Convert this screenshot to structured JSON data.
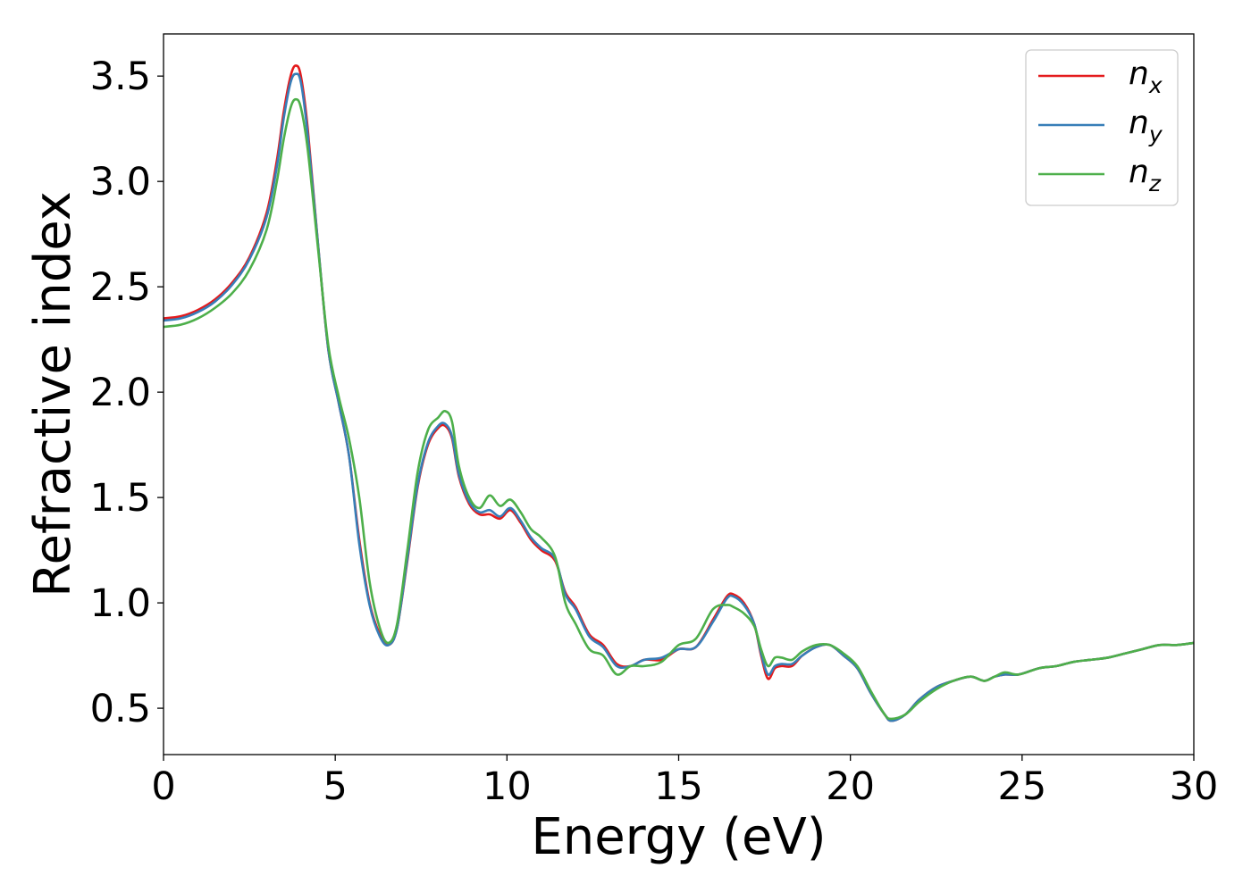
{
  "chart_data": {
    "type": "line",
    "xlabel": "Energy (eV)",
    "ylabel": "Refractive index",
    "xlim": [
      0,
      30
    ],
    "ylim": [
      0.28,
      3.7
    ],
    "xticks": [
      0,
      5,
      10,
      15,
      20,
      25,
      30
    ],
    "xtick_labels": [
      "0",
      "5",
      "10",
      "15",
      "20",
      "25",
      "30"
    ],
    "yticks": [
      0.5,
      1.0,
      1.5,
      2.0,
      2.5,
      3.0,
      3.5
    ],
    "ytick_labels": [
      "0.5",
      "1.0",
      "1.5",
      "2.0",
      "2.5",
      "3.0",
      "3.5"
    ],
    "grid": false,
    "legend_position": "top-right",
    "series": [
      {
        "name": "n_x",
        "base": "n",
        "sub": "x",
        "color": "#e41a1c",
        "points": [
          [
            0,
            2.35
          ],
          [
            0.5,
            2.36
          ],
          [
            1,
            2.39
          ],
          [
            1.5,
            2.44
          ],
          [
            2,
            2.52
          ],
          [
            2.5,
            2.64
          ],
          [
            3,
            2.85
          ],
          [
            3.3,
            3.1
          ],
          [
            3.5,
            3.33
          ],
          [
            3.7,
            3.5
          ],
          [
            3.85,
            3.55
          ],
          [
            4.0,
            3.5
          ],
          [
            4.2,
            3.25
          ],
          [
            4.5,
            2.7
          ],
          [
            4.8,
            2.2
          ],
          [
            5.1,
            1.95
          ],
          [
            5.4,
            1.7
          ],
          [
            5.7,
            1.3
          ],
          [
            6.0,
            1.0
          ],
          [
            6.3,
            0.85
          ],
          [
            6.55,
            0.8
          ],
          [
            6.8,
            0.88
          ],
          [
            7.1,
            1.2
          ],
          [
            7.4,
            1.55
          ],
          [
            7.7,
            1.75
          ],
          [
            8.0,
            1.83
          ],
          [
            8.2,
            1.84
          ],
          [
            8.4,
            1.78
          ],
          [
            8.6,
            1.6
          ],
          [
            8.9,
            1.47
          ],
          [
            9.2,
            1.42
          ],
          [
            9.5,
            1.42
          ],
          [
            9.8,
            1.4
          ],
          [
            10.1,
            1.44
          ],
          [
            10.4,
            1.38
          ],
          [
            10.7,
            1.3
          ],
          [
            11.0,
            1.25
          ],
          [
            11.4,
            1.2
          ],
          [
            11.7,
            1.05
          ],
          [
            12.0,
            0.98
          ],
          [
            12.4,
            0.85
          ],
          [
            12.8,
            0.8
          ],
          [
            13.2,
            0.71
          ],
          [
            13.6,
            0.7
          ],
          [
            14.0,
            0.73
          ],
          [
            14.5,
            0.73
          ],
          [
            15.0,
            0.78
          ],
          [
            15.5,
            0.79
          ],
          [
            16.0,
            0.92
          ],
          [
            16.4,
            1.03
          ],
          [
            16.6,
            1.04
          ],
          [
            16.9,
            1.0
          ],
          [
            17.2,
            0.9
          ],
          [
            17.4,
            0.75
          ],
          [
            17.6,
            0.64
          ],
          [
            17.8,
            0.69
          ],
          [
            18.0,
            0.7
          ],
          [
            18.3,
            0.7
          ],
          [
            18.6,
            0.75
          ],
          [
            19.0,
            0.79
          ],
          [
            19.4,
            0.8
          ],
          [
            19.8,
            0.75
          ],
          [
            20.2,
            0.69
          ],
          [
            20.6,
            0.57
          ],
          [
            21.0,
            0.47
          ],
          [
            21.2,
            0.44
          ],
          [
            21.6,
            0.47
          ],
          [
            22.0,
            0.54
          ],
          [
            22.5,
            0.6
          ],
          [
            23.0,
            0.63
          ],
          [
            23.5,
            0.65
          ],
          [
            23.9,
            0.63
          ],
          [
            24.2,
            0.65
          ],
          [
            24.5,
            0.66
          ],
          [
            24.9,
            0.66
          ],
          [
            25.5,
            0.69
          ],
          [
            26.0,
            0.7
          ],
          [
            26.5,
            0.72
          ],
          [
            27.0,
            0.73
          ],
          [
            27.5,
            0.74
          ],
          [
            28.0,
            0.76
          ],
          [
            28.5,
            0.78
          ],
          [
            29.0,
            0.8
          ],
          [
            29.5,
            0.8
          ],
          [
            30.0,
            0.81
          ]
        ]
      },
      {
        "name": "n_y",
        "base": "n",
        "sub": "y",
        "color": "#377eb8",
        "points": [
          [
            0,
            2.34
          ],
          [
            0.5,
            2.35
          ],
          [
            1,
            2.38
          ],
          [
            1.5,
            2.43
          ],
          [
            2,
            2.51
          ],
          [
            2.5,
            2.63
          ],
          [
            3,
            2.83
          ],
          [
            3.3,
            3.07
          ],
          [
            3.5,
            3.3
          ],
          [
            3.7,
            3.47
          ],
          [
            3.85,
            3.51
          ],
          [
            4.0,
            3.47
          ],
          [
            4.2,
            3.22
          ],
          [
            4.5,
            2.7
          ],
          [
            4.8,
            2.2
          ],
          [
            5.1,
            1.95
          ],
          [
            5.4,
            1.7
          ],
          [
            5.7,
            1.28
          ],
          [
            6.0,
            0.99
          ],
          [
            6.3,
            0.84
          ],
          [
            6.55,
            0.8
          ],
          [
            6.8,
            0.88
          ],
          [
            7.1,
            1.21
          ],
          [
            7.4,
            1.56
          ],
          [
            7.7,
            1.76
          ],
          [
            8.0,
            1.84
          ],
          [
            8.2,
            1.85
          ],
          [
            8.4,
            1.79
          ],
          [
            8.6,
            1.61
          ],
          [
            8.9,
            1.48
          ],
          [
            9.2,
            1.43
          ],
          [
            9.5,
            1.44
          ],
          [
            9.8,
            1.41
          ],
          [
            10.1,
            1.45
          ],
          [
            10.4,
            1.39
          ],
          [
            10.7,
            1.31
          ],
          [
            11.0,
            1.26
          ],
          [
            11.4,
            1.21
          ],
          [
            11.7,
            1.04
          ],
          [
            12.0,
            0.97
          ],
          [
            12.4,
            0.84
          ],
          [
            12.8,
            0.79
          ],
          [
            13.2,
            0.7
          ],
          [
            13.6,
            0.7
          ],
          [
            14.0,
            0.73
          ],
          [
            14.5,
            0.74
          ],
          [
            15.0,
            0.78
          ],
          [
            15.5,
            0.79
          ],
          [
            16.0,
            0.91
          ],
          [
            16.4,
            1.02
          ],
          [
            16.6,
            1.03
          ],
          [
            16.9,
            0.99
          ],
          [
            17.2,
            0.9
          ],
          [
            17.4,
            0.76
          ],
          [
            17.6,
            0.66
          ],
          [
            17.8,
            0.7
          ],
          [
            18.0,
            0.71
          ],
          [
            18.3,
            0.71
          ],
          [
            18.6,
            0.75
          ],
          [
            19.0,
            0.79
          ],
          [
            19.4,
            0.8
          ],
          [
            19.8,
            0.75
          ],
          [
            20.2,
            0.69
          ],
          [
            20.6,
            0.57
          ],
          [
            21.0,
            0.47
          ],
          [
            21.2,
            0.44
          ],
          [
            21.6,
            0.47
          ],
          [
            22.0,
            0.54
          ],
          [
            22.5,
            0.6
          ],
          [
            23.0,
            0.63
          ],
          [
            23.5,
            0.65
          ],
          [
            23.9,
            0.63
          ],
          [
            24.2,
            0.65
          ],
          [
            24.5,
            0.66
          ],
          [
            24.9,
            0.66
          ],
          [
            25.5,
            0.69
          ],
          [
            26.0,
            0.7
          ],
          [
            26.5,
            0.72
          ],
          [
            27.0,
            0.73
          ],
          [
            27.5,
            0.74
          ],
          [
            28.0,
            0.76
          ],
          [
            28.5,
            0.78
          ],
          [
            29.0,
            0.8
          ],
          [
            29.5,
            0.8
          ],
          [
            30.0,
            0.81
          ]
        ]
      },
      {
        "name": "n_z",
        "base": "n",
        "sub": "z",
        "color": "#4daf4a",
        "points": [
          [
            0,
            2.31
          ],
          [
            0.5,
            2.32
          ],
          [
            1,
            2.35
          ],
          [
            1.5,
            2.4
          ],
          [
            2,
            2.47
          ],
          [
            2.5,
            2.58
          ],
          [
            3,
            2.77
          ],
          [
            3.3,
            3.0
          ],
          [
            3.5,
            3.2
          ],
          [
            3.7,
            3.35
          ],
          [
            3.85,
            3.39
          ],
          [
            4.0,
            3.35
          ],
          [
            4.2,
            3.15
          ],
          [
            4.5,
            2.68
          ],
          [
            4.8,
            2.22
          ],
          [
            5.1,
            1.98
          ],
          [
            5.4,
            1.78
          ],
          [
            5.7,
            1.5
          ],
          [
            6.0,
            1.1
          ],
          [
            6.3,
            0.88
          ],
          [
            6.55,
            0.81
          ],
          [
            6.8,
            0.9
          ],
          [
            7.1,
            1.25
          ],
          [
            7.4,
            1.62
          ],
          [
            7.7,
            1.82
          ],
          [
            8.0,
            1.88
          ],
          [
            8.2,
            1.91
          ],
          [
            8.4,
            1.86
          ],
          [
            8.6,
            1.65
          ],
          [
            8.9,
            1.5
          ],
          [
            9.2,
            1.45
          ],
          [
            9.5,
            1.51
          ],
          [
            9.8,
            1.46
          ],
          [
            10.1,
            1.49
          ],
          [
            10.4,
            1.43
          ],
          [
            10.7,
            1.35
          ],
          [
            11.0,
            1.31
          ],
          [
            11.4,
            1.22
          ],
          [
            11.7,
            1.0
          ],
          [
            12.0,
            0.9
          ],
          [
            12.4,
            0.78
          ],
          [
            12.8,
            0.75
          ],
          [
            13.2,
            0.66
          ],
          [
            13.6,
            0.7
          ],
          [
            14.0,
            0.7
          ],
          [
            14.5,
            0.72
          ],
          [
            15.0,
            0.8
          ],
          [
            15.5,
            0.83
          ],
          [
            16.0,
            0.97
          ],
          [
            16.4,
            0.99
          ],
          [
            16.6,
            0.98
          ],
          [
            16.9,
            0.95
          ],
          [
            17.2,
            0.89
          ],
          [
            17.4,
            0.78
          ],
          [
            17.6,
            0.7
          ],
          [
            17.8,
            0.74
          ],
          [
            18.0,
            0.74
          ],
          [
            18.3,
            0.73
          ],
          [
            18.6,
            0.77
          ],
          [
            19.0,
            0.8
          ],
          [
            19.4,
            0.8
          ],
          [
            19.8,
            0.76
          ],
          [
            20.2,
            0.7
          ],
          [
            20.6,
            0.58
          ],
          [
            21.0,
            0.47
          ],
          [
            21.2,
            0.45
          ],
          [
            21.6,
            0.47
          ],
          [
            22.0,
            0.53
          ],
          [
            22.5,
            0.59
          ],
          [
            23.0,
            0.63
          ],
          [
            23.5,
            0.65
          ],
          [
            23.9,
            0.63
          ],
          [
            24.2,
            0.65
          ],
          [
            24.5,
            0.67
          ],
          [
            24.9,
            0.66
          ],
          [
            25.5,
            0.69
          ],
          [
            26.0,
            0.7
          ],
          [
            26.5,
            0.72
          ],
          [
            27.0,
            0.73
          ],
          [
            27.5,
            0.74
          ],
          [
            28.0,
            0.76
          ],
          [
            28.5,
            0.78
          ],
          [
            29.0,
            0.8
          ],
          [
            29.5,
            0.8
          ],
          [
            30.0,
            0.81
          ]
        ]
      }
    ]
  }
}
